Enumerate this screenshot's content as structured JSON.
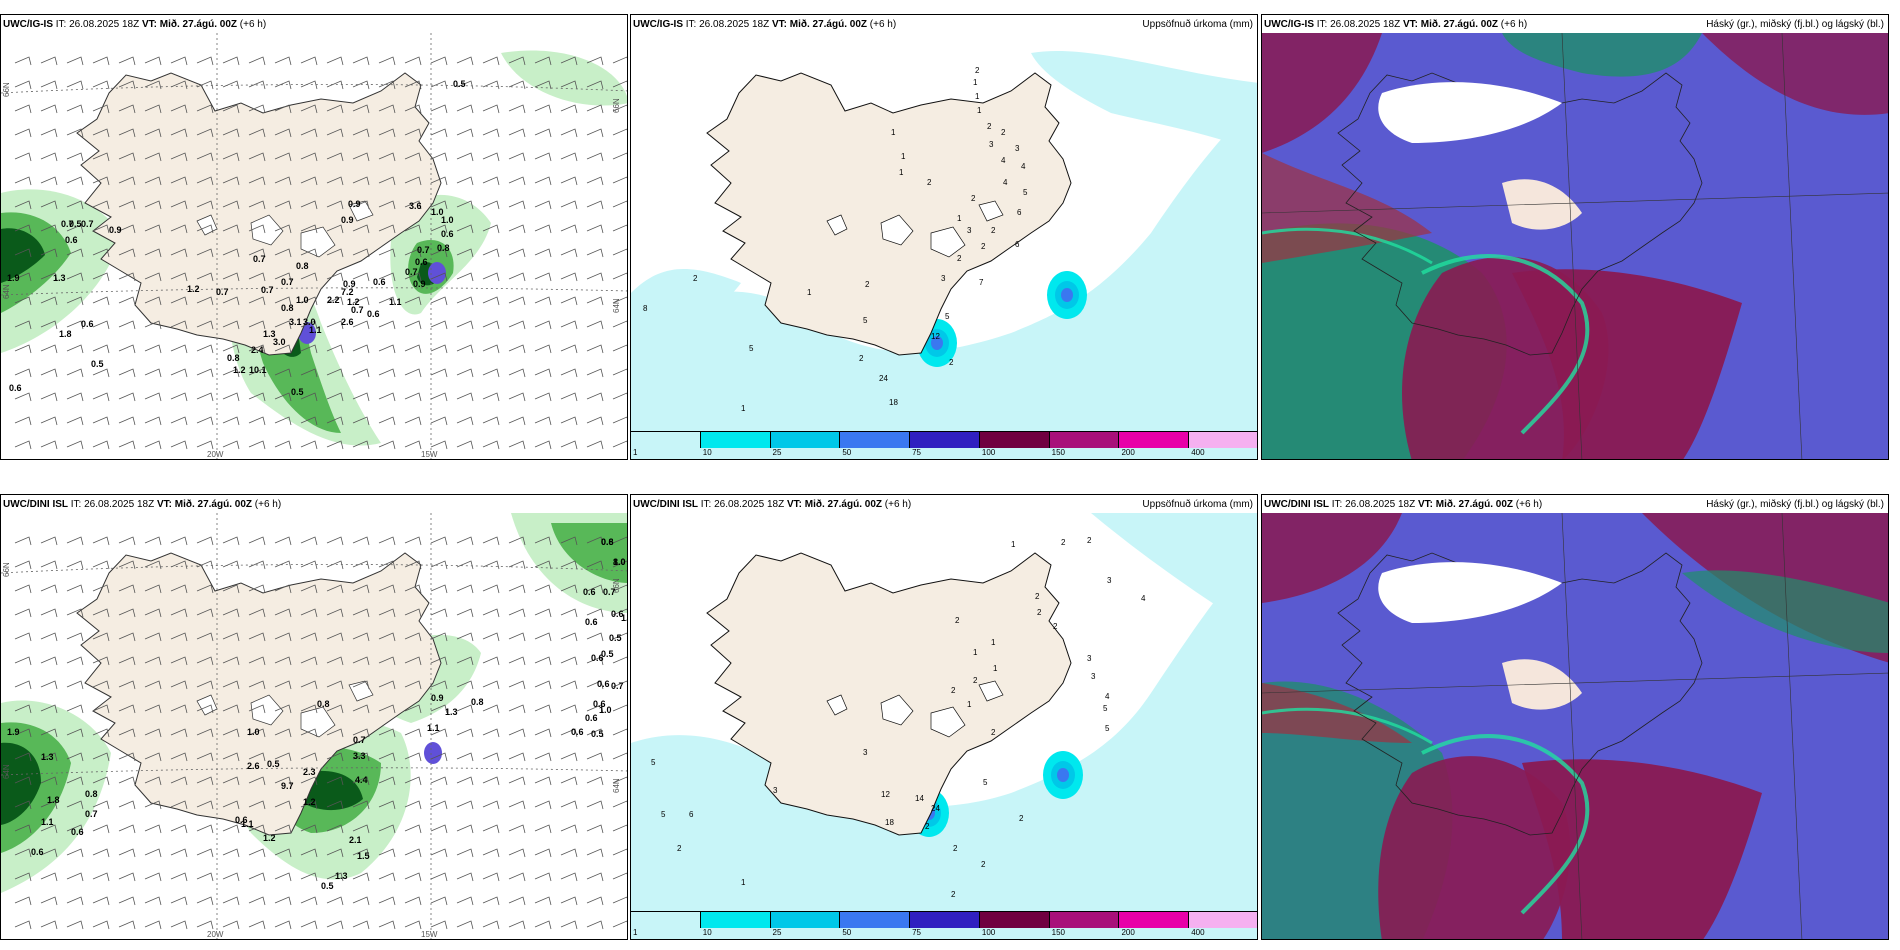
{
  "panels": [
    {
      "model": "UWC/IG-IS",
      "it_label": "IT:",
      "it_value": "26.08.2025 18Z",
      "vt_label": "VT:",
      "vt_value": "Mið. 27.ágú. 00Z",
      "lead": "(+6 h)",
      "right_title": "",
      "type": "wind_precip",
      "axis": {
        "lon1": "20W",
        "lon2": "15W",
        "lat1": "66N",
        "lat2": "64N"
      },
      "values": [
        "0.5",
        "0.7",
        "0.5",
        "0.7",
        "0.9",
        "0.6",
        "0.9",
        "0.7",
        "0.8",
        "0.7",
        "1.9",
        "1.3",
        "0.6",
        "1.8",
        "0.5",
        "0.6",
        "0.5",
        "0.9",
        "0.7",
        "1.2",
        "0.7",
        "1.0",
        "0.8",
        "3.1",
        "3.0",
        "1.1",
        "0.9",
        "2.6",
        "1.3",
        "3.0",
        "2.4",
        "0.8",
        "1.2",
        "10.1",
        "3.6",
        "1.0",
        "1.0",
        "0.6",
        "0.8",
        "0.7",
        "0.6",
        "0.7",
        "0.9",
        "0.6",
        "1.1",
        "0.7",
        "0.6",
        "2.2",
        "1.2",
        "7.2"
      ]
    },
    {
      "model": "UWC/IG-IS",
      "it_label": "IT:",
      "it_value": "26.08.2025 18Z",
      "vt_label": "VT:",
      "vt_value": "Mið. 27.ágú. 00Z",
      "lead": "(+6 h)",
      "right_title": "Uppsöfnuð úrkoma (mm)",
      "type": "accum",
      "values": [
        "2",
        "1",
        "1",
        "1",
        "2",
        "2",
        "3",
        "3",
        "4",
        "4",
        "4",
        "5",
        "6",
        "1",
        "1",
        "2",
        "2",
        "3",
        "2",
        "1",
        "2",
        "2",
        "3",
        "8",
        "2",
        "1",
        "5",
        "5",
        "12",
        "7",
        "5",
        "2",
        "2",
        "2",
        "6",
        "18",
        "24",
        "1",
        "1"
      ]
    },
    {
      "model": "UWC/IG-IS",
      "it_label": "IT:",
      "it_value": "26.08.2025 18Z",
      "vt_label": "VT:",
      "vt_value": "Mið. 27.ágú. 00Z",
      "lead": "(+6 h)",
      "right_title": "Háský (gr.), miðský (fj.bl.) og lágský (bl.)",
      "type": "cloud"
    },
    {
      "model": "UWC/DINI ISL",
      "it_label": "IT:",
      "it_value": "26.08.2025 18Z",
      "vt_label": "VT:",
      "vt_value": "Mið. 27.ágú. 00Z",
      "lead": "(+6 h)",
      "right_title": "",
      "type": "wind_precip",
      "axis": {
        "lon1": "20W",
        "lon2": "15W",
        "lat1": "66N",
        "lat2": "64N"
      },
      "values": [
        "0.6",
        "1.0",
        "0.7",
        "0.6",
        "0.6",
        "1.3",
        "0.6",
        "0.5",
        "0.5",
        "0.6",
        "0.6",
        "0.7",
        "0.6",
        "0.6",
        "0.5",
        "0.6",
        "1.0",
        "0.8",
        "0.9",
        "1.3",
        "1.1",
        "1.9",
        "1.3",
        "1.8",
        "1.1",
        "0.8",
        "0.7",
        "0.6",
        "0.6",
        "1.0",
        "0.8",
        "0.7",
        "2.3",
        "3.3",
        "4.4",
        "2.6",
        "0.5",
        "9.7",
        "1.2",
        "0.6",
        "1.1",
        "1.2",
        "2.1",
        "1.5",
        "1.3",
        "0.5",
        "0.8",
        "8.0"
      ]
    },
    {
      "model": "UWC/DINI ISL",
      "it_label": "IT:",
      "it_value": "26.08.2025 18Z",
      "vt_label": "VT:",
      "vt_value": "Mið. 27.ágú. 00Z",
      "lead": "(+6 h)",
      "right_title": "Uppsöfnuð úrkoma (mm)",
      "type": "accum",
      "values": [
        "2",
        "2",
        "1",
        "3",
        "4",
        "2",
        "2",
        "2",
        "3",
        "3",
        "4",
        "5",
        "5",
        "1",
        "1",
        "2",
        "1",
        "2",
        "2",
        "1",
        "2",
        "5",
        "6",
        "2",
        "5",
        "3",
        "3",
        "12",
        "14",
        "24",
        "18",
        "2",
        "2",
        "2",
        "5",
        "2",
        "2",
        "1"
      ]
    },
    {
      "model": "UWC/DINI ISL",
      "it_label": "IT:",
      "it_value": "26.08.2025 18Z",
      "vt_label": "VT:",
      "vt_value": "Mið. 27.ágú. 00Z",
      "lead": "(+6 h)",
      "right_title": "Háský (gr.), miðský (fj.bl.) og lágský (bl.)",
      "type": "cloud"
    }
  ],
  "legend": {
    "colors": [
      "#c8f5f8",
      "#00e8ee",
      "#00c8e8",
      "#3a78f0",
      "#3020c0",
      "#700040",
      "#a8107a",
      "#e800a8",
      "#f5b0f0"
    ],
    "ticks": [
      "1",
      "10",
      "25",
      "50",
      "75",
      "100",
      "150",
      "200",
      "400"
    ]
  },
  "colors": {
    "land": "#f5ede2",
    "precip_light": "#c8efc8",
    "precip_mid": "#58b858",
    "precip_dark": "#0a5a1a",
    "precip_peak": "#6050d8",
    "cloud_high": "#1f8f6a",
    "cloud_mid": "#8a1a52",
    "cloud_low": "#5a5ad0",
    "cloud_edge": "#20e0a0"
  }
}
